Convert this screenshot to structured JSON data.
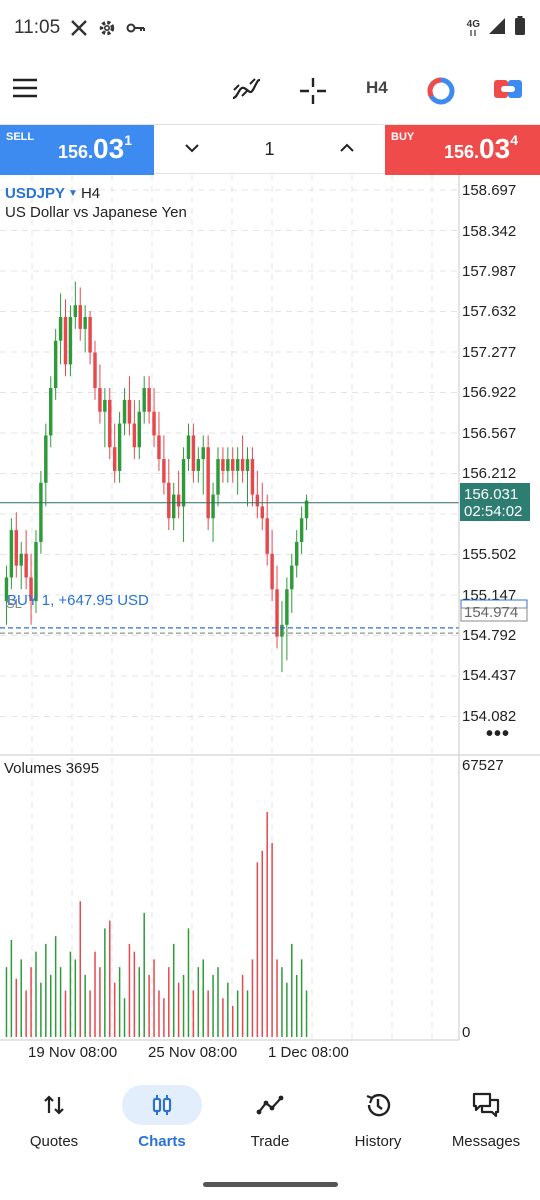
{
  "status_bar": {
    "time": "11:05",
    "network": "4G"
  },
  "toolbar": {
    "timeframe_label": "H4"
  },
  "trade": {
    "sell_label": "SELL",
    "sell_price": {
      "small": "156.",
      "big": "03",
      "sup": "1"
    },
    "buy_label": "BUY",
    "buy_price": {
      "small": "156.",
      "big": "03",
      "sup": "4"
    },
    "volume": "1"
  },
  "chart": {
    "symbol": "USDJPY",
    "timeframe": "H4",
    "description": "US Dollar vs Japanese Yen",
    "price_ticks": [
      "158.697",
      "158.342",
      "157.987",
      "157.632",
      "157.277",
      "156.922",
      "156.567",
      "156.212",
      "155.502",
      "155.147",
      "154.792",
      "154.437",
      "154.082"
    ],
    "current_price": "156.031",
    "countdown": "02:54:02",
    "position_label": "BUY 1,  +647.95 USD",
    "sl_label": "SL",
    "open_price_label": "154.974",
    "volume_title": "Volumes 3695",
    "volume_max_label": "67527",
    "volume_min_label": "0",
    "time_labels": [
      "19 Nov 08:00",
      "25 Nov 08:00",
      "1 Dec 08:00"
    ],
    "more_label": "•••"
  },
  "chart_data": {
    "type": "candlestick",
    "ylim": [
      153.9,
      158.8
    ],
    "current_price": 156.031,
    "open_price": 154.974,
    "stop_loss": 154.93,
    "candles": [
      [
        155.2,
        155.5,
        155.0,
        155.4
      ],
      [
        155.4,
        155.9,
        155.3,
        155.8
      ],
      [
        155.8,
        155.95,
        155.4,
        155.5
      ],
      [
        155.5,
        155.7,
        155.3,
        155.6
      ],
      [
        155.6,
        155.8,
        155.3,
        155.4
      ],
      [
        155.4,
        155.6,
        155.0,
        155.2
      ],
      [
        155.2,
        155.8,
        155.1,
        155.7
      ],
      [
        155.7,
        156.3,
        155.6,
        156.2
      ],
      [
        156.2,
        156.7,
        156.0,
        156.6
      ],
      [
        156.6,
        157.1,
        156.5,
        157.0
      ],
      [
        157.0,
        157.5,
        156.9,
        157.4
      ],
      [
        157.4,
        157.8,
        157.2,
        157.6
      ],
      [
        157.6,
        157.75,
        157.1,
        157.2
      ],
      [
        157.2,
        157.7,
        157.1,
        157.6
      ],
      [
        157.6,
        157.9,
        157.5,
        157.7
      ],
      [
        157.7,
        157.85,
        157.4,
        157.5
      ],
      [
        157.5,
        157.7,
        157.3,
        157.6
      ],
      [
        157.6,
        157.65,
        157.2,
        157.3
      ],
      [
        157.3,
        157.4,
        156.9,
        157.0
      ],
      [
        157.0,
        157.2,
        156.7,
        156.8
      ],
      [
        156.8,
        157.0,
        156.5,
        156.9
      ],
      [
        156.9,
        157.0,
        156.4,
        156.5
      ],
      [
        156.5,
        156.7,
        156.2,
        156.3
      ],
      [
        156.3,
        156.8,
        156.2,
        156.7
      ],
      [
        156.7,
        157.0,
        156.6,
        156.9
      ],
      [
        156.9,
        157.1,
        156.6,
        156.7
      ],
      [
        156.7,
        156.9,
        156.4,
        156.5
      ],
      [
        156.5,
        156.9,
        156.4,
        156.8
      ],
      [
        156.8,
        157.1,
        156.7,
        157.0
      ],
      [
        157.0,
        157.1,
        156.7,
        156.8
      ],
      [
        156.8,
        157.0,
        156.5,
        156.6
      ],
      [
        156.6,
        156.8,
        156.3,
        156.4
      ],
      [
        156.4,
        156.6,
        156.1,
        156.2
      ],
      [
        156.2,
        156.4,
        155.8,
        155.9
      ],
      [
        155.9,
        156.2,
        155.8,
        156.1
      ],
      [
        156.1,
        156.3,
        155.9,
        156.0
      ],
      [
        156.0,
        156.5,
        155.7,
        156.4
      ],
      [
        156.4,
        156.7,
        156.3,
        156.6
      ],
      [
        156.6,
        156.7,
        156.2,
        156.3
      ],
      [
        156.3,
        156.5,
        156.2,
        156.4
      ],
      [
        156.4,
        156.6,
        156.1,
        156.5
      ],
      [
        156.5,
        156.6,
        155.8,
        155.9
      ],
      [
        155.9,
        156.2,
        155.7,
        156.1
      ],
      [
        156.1,
        156.5,
        156.0,
        156.4
      ],
      [
        156.4,
        156.5,
        156.2,
        156.3
      ],
      [
        156.3,
        156.5,
        156.2,
        156.4
      ],
      [
        156.4,
        156.5,
        156.2,
        156.3
      ],
      [
        156.3,
        156.5,
        156.1,
        156.4
      ],
      [
        156.4,
        156.6,
        156.2,
        156.3
      ],
      [
        156.3,
        156.5,
        156.0,
        156.4
      ],
      [
        156.4,
        156.5,
        156.0,
        156.1
      ],
      [
        156.1,
        156.3,
        155.9,
        156.0
      ],
      [
        156.0,
        156.2,
        155.8,
        155.9
      ],
      [
        155.9,
        156.1,
        155.5,
        155.6
      ],
      [
        155.6,
        155.8,
        155.2,
        155.3
      ],
      [
        155.3,
        155.5,
        154.8,
        154.9
      ],
      [
        154.9,
        155.2,
        154.6,
        155.0
      ],
      [
        155.0,
        155.4,
        154.7,
        155.3
      ],
      [
        155.3,
        155.6,
        155.1,
        155.5
      ],
      [
        155.5,
        155.8,
        155.4,
        155.7
      ],
      [
        155.7,
        156.0,
        155.6,
        155.9
      ],
      [
        155.9,
        156.1,
        155.8,
        156.05
      ]
    ],
    "volumes": [
      18000,
      25000,
      15000,
      20000,
      12000,
      18000,
      22000,
      14000,
      24000,
      16000,
      26000,
      18000,
      12000,
      22000,
      20000,
      35000,
      16000,
      12000,
      22000,
      18000,
      28000,
      30000,
      14000,
      18000,
      10000,
      24000,
      22000,
      18000,
      32000,
      16000,
      20000,
      12000,
      10000,
      18000,
      24000,
      14000,
      16000,
      28000,
      12000,
      18000,
      20000,
      12000,
      16000,
      18000,
      10000,
      14000,
      8000,
      12000,
      16000,
      12000,
      20000,
      45000,
      48000,
      58000,
      50000,
      20000,
      18000,
      14000,
      24000,
      16000,
      20000,
      12000
    ],
    "volume_max": 67527
  }
}
